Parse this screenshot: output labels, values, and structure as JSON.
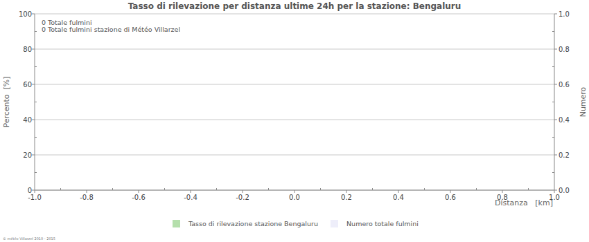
{
  "chart_data": {
    "type": "bar",
    "title": "Tasso di rilevazione per distanza ultime 24h per la stazione: Bengaluru",
    "annotations": [
      "0 Totale fulmini",
      "0 Totale fulmini stazione di Météo Villarzel"
    ],
    "x_label": "Distanza   [km]",
    "y_label": "Percento  [%]",
    "y2_label": "Numero",
    "source": "© météo Villarzel 2010 - 2015",
    "x": [],
    "series": [
      {
        "name": "Tasso di rilevazione stazione Bengaluru",
        "color": "#b5dfac",
        "values": []
      },
      {
        "name": "Numero totale fulmini",
        "color": "#eeeefa",
        "values": [],
        "axis": "y2"
      }
    ],
    "xlim": [
      -1.0,
      1.0
    ],
    "xticks": [
      {
        "value": -1.0,
        "label": "-1.0"
      },
      -0.8,
      -0.6,
      -0.4,
      -0.2,
      {
        "value": 0,
        "label": "0.0"
      },
      0.2,
      0.4,
      0.6,
      0.8,
      {
        "value": 1.0,
        "label": "1.0"
      }
    ],
    "ylim": [
      0,
      100
    ],
    "yticks": [
      0,
      20,
      40,
      60,
      80,
      100
    ],
    "y2lim": [
      0,
      1.0
    ],
    "y2ticks": [
      {
        "value": 0,
        "label": "0.0"
      },
      0.2,
      0.4,
      0.6,
      0.8,
      {
        "value": 1.0,
        "label": "1.0"
      }
    ],
    "grid": true,
    "legend": "bottom"
  }
}
